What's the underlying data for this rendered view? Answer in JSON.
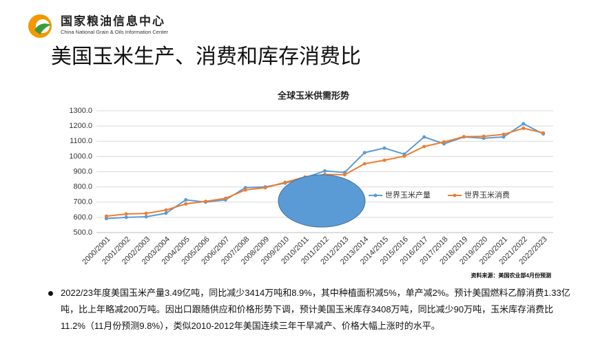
{
  "header": {
    "logo_cn": "国家粮油信息中心",
    "logo_en": "China National Grain & Oils Information Center"
  },
  "slide_title": "美国玉米生产、消费和库存消费比",
  "chart_data": {
    "type": "line",
    "title": "全球玉米供需形势",
    "categories": [
      "2000/2001",
      "2001/2002",
      "2002/2003",
      "2003/2004",
      "2004/2005",
      "2005/2006",
      "2006/2007",
      "2007/2008",
      "2008/2009",
      "2009/2010",
      "2010/2011",
      "2011/2012",
      "2012/2013",
      "2013/2014",
      "2014/2015",
      "2015/2016",
      "2016/2017",
      "2017/2018",
      "2018/2019",
      "2019/2020",
      "2020/2021",
      "2021/2022",
      "2022/2023"
    ],
    "series": [
      {
        "name": "世界玉米产量",
        "color": "#5b9bd5",
        "values": [
          592,
          600,
          604,
          627,
          715,
          700,
          715,
          795,
          800,
          825,
          860,
          905,
          895,
          1025,
          1055,
          1015,
          1128,
          1083,
          1128,
          1120,
          1128,
          1215,
          1148
        ]
      },
      {
        "name": "世界玉米消费",
        "color": "#ed7d31",
        "values": [
          608,
          622,
          626,
          648,
          688,
          705,
          725,
          780,
          795,
          830,
          865,
          882,
          880,
          952,
          975,
          1002,
          1065,
          1095,
          1130,
          1132,
          1145,
          1185,
          1155
        ]
      }
    ],
    "ylim": [
      500,
      1300
    ],
    "yticks": [
      {
        "value": 500,
        "label": "500.0"
      },
      {
        "value": 600,
        "label": "600.0"
      },
      {
        "value": 700,
        "label": "700.0"
      },
      {
        "value": 800,
        "label": "800.0"
      },
      {
        "value": 900,
        "label": "900.0"
      },
      {
        "value": 1000,
        "label": "1000.0"
      },
      {
        "value": 1100,
        "label": "1100.0"
      },
      {
        "value": 1200,
        "label": "1200.0"
      },
      {
        "value": 1300,
        "label": "1300.0"
      }
    ],
    "grid": true,
    "legend": "right",
    "source": "资料来源：美国农业部4月份预测"
  },
  "bullet": "2022/23年度美国玉米产量3.49亿吨，同比减少3414万吨和8.9%，其中种植面积减5%，单产减2%。预计美国燃料乙醇消费1.33亿吨，比上年略减200万吨。因出口跟随供应和价格形势下调，预计美国玉米库存3408万吨，同比减少90万吨，玉米库存消费比11.2%（11月份预测9.8%），类似2010-2012年美国连续三年干旱减产、价格大幅上涨时的水平。"
}
